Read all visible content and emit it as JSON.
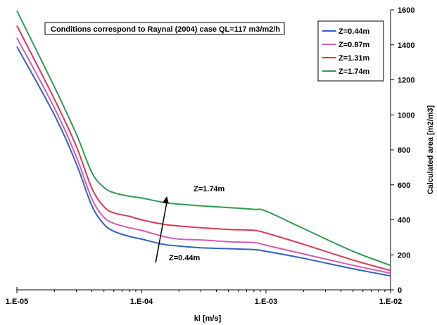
{
  "chart_data": {
    "type": "line",
    "title": "",
    "xlabel": "kl [m/s]",
    "ylabel": "Calculated area [m2/m3]",
    "x_scale": "log",
    "xlim": [
      1e-05,
      0.01
    ],
    "ylim": [
      0,
      1600
    ],
    "x_ticks": [
      1e-05,
      0.0001,
      0.001,
      0.01
    ],
    "x_tick_labels": [
      "1.E-05",
      "1.E-04",
      "1.E-03",
      "1.E-02"
    ],
    "y_ticks": [
      0,
      200,
      400,
      600,
      800,
      1000,
      1200,
      1400,
      1600
    ],
    "y_tick_labels": [
      "0",
      "200",
      "400",
      "600",
      "800",
      "1000",
      "1200",
      "1400",
      "1600"
    ],
    "y_axis_side": "right",
    "grid": false,
    "legend_position": "top-right",
    "annotation_box": "Conditions correspond to Raynal (2004) case QL=117 m3/m2/h",
    "annotations": [
      {
        "text": "Z=1.74m",
        "x": 0.00018,
        "y": 570
      },
      {
        "text": "Z=0.44m",
        "x": 0.00013,
        "y": 175
      }
    ],
    "arrow": {
      "from": [
        0.00013,
        155
      ],
      "to": [
        0.00016,
        535
      ],
      "color": "#000000"
    },
    "x": [
      1e-05,
      2e-05,
      3e-05,
      4e-05,
      5e-05,
      6e-05,
      8e-05,
      0.0001,
      0.00015,
      0.0002,
      0.0003,
      0.0005,
      0.0008,
      0.001,
      0.002,
      0.005,
      0.01
    ],
    "series": [
      {
        "name": "Z=0.44m",
        "color": "#2e63c0",
        "values": [
          1390,
          1000,
          720,
          480,
          375,
          335,
          305,
          290,
          260,
          250,
          240,
          235,
          230,
          220,
          180,
          120,
          80
        ]
      },
      {
        "name": "Z=0.87m",
        "color": "#d65ab5",
        "values": [
          1440,
          1040,
          760,
          520,
          415,
          380,
          355,
          340,
          305,
          290,
          285,
          275,
          270,
          255,
          205,
          140,
          95
        ]
      },
      {
        "name": "Z=1.31m",
        "color": "#d83a52",
        "values": [
          1510,
          1090,
          820,
          580,
          475,
          440,
          420,
          400,
          375,
          365,
          355,
          345,
          340,
          325,
          260,
          170,
          110
        ]
      },
      {
        "name": "Z=1.74m",
        "color": "#2f9a52",
        "values": [
          1595,
          1160,
          890,
          670,
          585,
          555,
          535,
          525,
          500,
          490,
          480,
          470,
          460,
          450,
          350,
          220,
          140
        ]
      }
    ]
  }
}
